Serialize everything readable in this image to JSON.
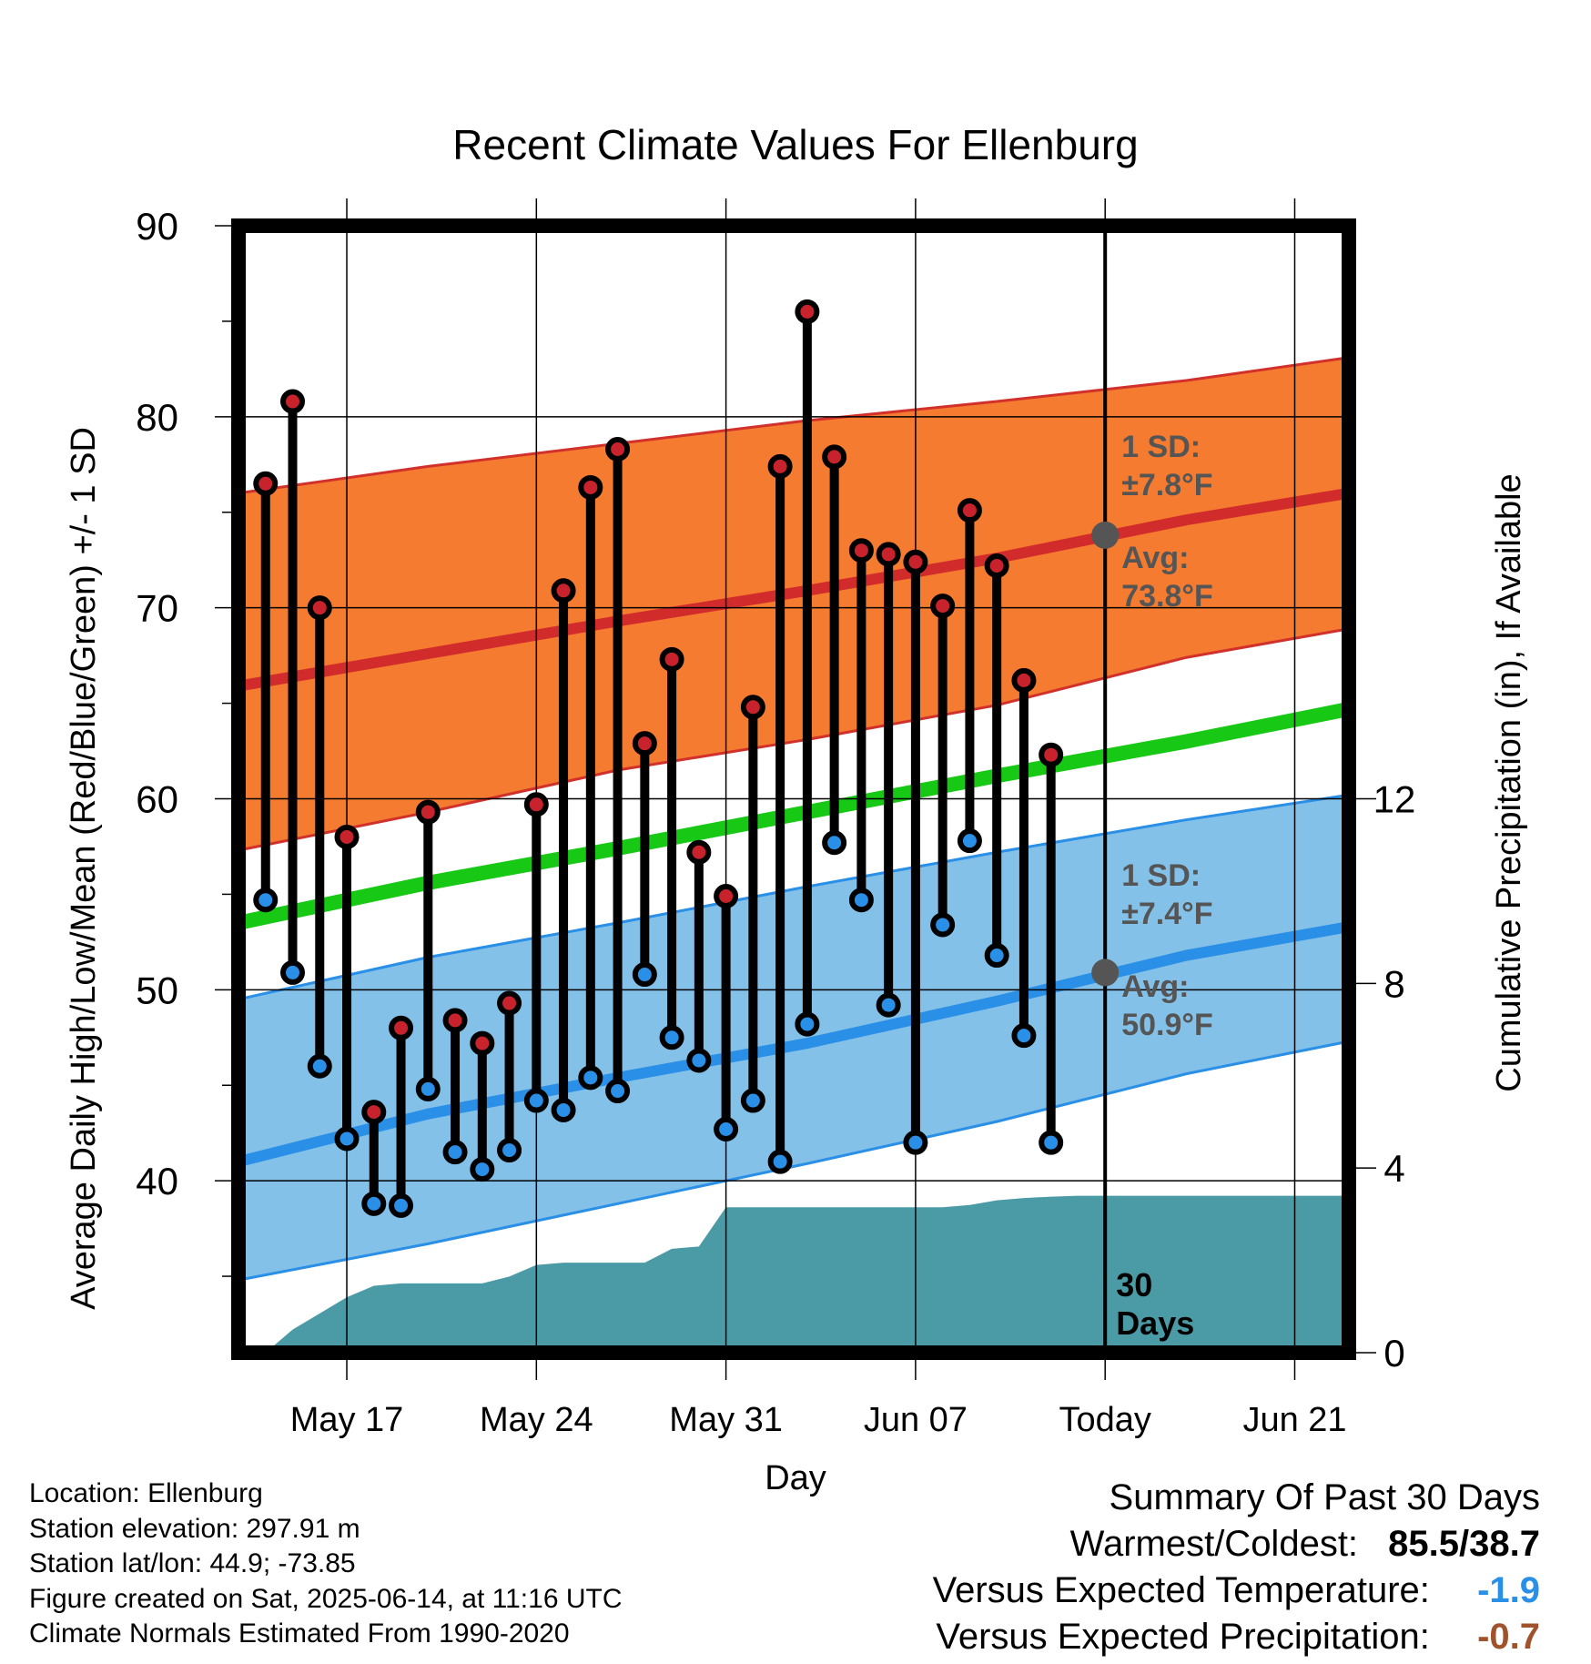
{
  "chart_data": {
    "type": "line",
    "title": "Recent Climate Values For Ellenburg",
    "xlabel": "Day",
    "ylabel": "Average Daily High/Low/Mean (Red/Blue/Green) +/- 1 SD",
    "y2label": "Cumulative Precipitation (in), If Available",
    "ylim": [
      31,
      90
    ],
    "yticks": [
      "40",
      "50",
      "60",
      "70",
      "80",
      "90"
    ],
    "y2lim": [
      0,
      12
    ],
    "y2ticks": [
      "0",
      "4",
      "8",
      "12"
    ],
    "xlim": [
      "2025-05-13",
      "2025-06-23"
    ],
    "xticks": [
      {
        "date": "2025-05-17",
        "label": "May 17"
      },
      {
        "date": "2025-05-24",
        "label": "May 24"
      },
      {
        "date": "2025-05-31",
        "label": "May 31"
      },
      {
        "date": "2025-06-07",
        "label": "Jun 07"
      },
      {
        "date": "2025-06-14",
        "label": "Today"
      },
      {
        "date": "2025-06-21",
        "label": "Jun 21"
      }
    ],
    "today": "2025-06-14",
    "today_label": [
      "30",
      "Days"
    ],
    "grid": true,
    "normals": {
      "dates": [
        "2025-05-13",
        "2025-05-20",
        "2025-05-27",
        "2025-06-03",
        "2025-06-10",
        "2025-06-17",
        "2025-06-23"
      ],
      "high_mean": [
        65.9,
        67.6,
        69.3,
        70.9,
        72.6,
        74.6,
        76.0
      ],
      "high_upper": [
        76.0,
        77.4,
        78.6,
        79.8,
        80.8,
        81.9,
        83.1
      ],
      "high_lower": [
        57.3,
        59.3,
        61.5,
        63.1,
        64.9,
        67.4,
        68.9
      ],
      "low_mean": [
        41.0,
        43.5,
        45.4,
        47.2,
        49.4,
        51.8,
        53.3
      ],
      "low_upper": [
        49.5,
        51.7,
        53.5,
        55.4,
        57.2,
        58.9,
        60.2
      ],
      "low_lower": [
        34.8,
        36.7,
        38.8,
        40.9,
        43.1,
        45.6,
        47.3
      ],
      "mean": [
        53.5,
        55.6,
        57.4,
        59.3,
        61.2,
        63.0,
        64.7
      ]
    },
    "high_label": {
      "sd": "1 SD:",
      "sd_value": "±7.8°F",
      "avg": "Avg:",
      "avg_value": "73.8°F",
      "marker_value": 73.8
    },
    "low_label": {
      "sd": "1 SD:",
      "sd_value": "±7.4°F",
      "avg": "Avg:",
      "avg_value": "50.9°F",
      "marker_value": 50.9
    },
    "series": [
      {
        "name": "High",
        "color": "#c8232c",
        "dates": [
          "2025-05-14",
          "2025-05-15",
          "2025-05-16",
          "2025-05-17",
          "2025-05-18",
          "2025-05-19",
          "2025-05-20",
          "2025-05-21",
          "2025-05-22",
          "2025-05-23",
          "2025-05-24",
          "2025-05-25",
          "2025-05-26",
          "2025-05-27",
          "2025-05-28",
          "2025-05-29",
          "2025-05-30",
          "2025-05-31",
          "2025-06-01",
          "2025-06-02",
          "2025-06-03",
          "2025-06-04",
          "2025-06-05",
          "2025-06-06",
          "2025-06-07",
          "2025-06-08",
          "2025-06-09",
          "2025-06-10",
          "2025-06-11",
          "2025-06-12",
          "2025-06-13"
        ],
        "values": [
          76.5,
          80.8,
          70.0,
          58.0,
          43.6,
          48.0,
          59.3,
          48.4,
          47.2,
          49.3,
          59.7,
          70.9,
          76.3,
          78.3,
          62.9,
          67.3,
          57.2,
          54.9,
          64.8,
          77.4,
          85.5,
          77.9,
          73.0,
          72.8,
          72.4,
          70.1,
          75.1,
          72.2,
          66.2,
          62.3,
          null
        ]
      },
      {
        "name": "Low",
        "color": "#2a8fe6",
        "dates": [
          "2025-05-14",
          "2025-05-15",
          "2025-05-16",
          "2025-05-17",
          "2025-05-18",
          "2025-05-19",
          "2025-05-20",
          "2025-05-21",
          "2025-05-22",
          "2025-05-23",
          "2025-05-24",
          "2025-05-25",
          "2025-05-26",
          "2025-05-27",
          "2025-05-28",
          "2025-05-29",
          "2025-05-30",
          "2025-05-31",
          "2025-06-01",
          "2025-06-02",
          "2025-06-03",
          "2025-06-04",
          "2025-06-05",
          "2025-06-06",
          "2025-06-07",
          "2025-06-08",
          "2025-06-09",
          "2025-06-10",
          "2025-06-11",
          "2025-06-12",
          "2025-06-13"
        ],
        "values": [
          54.7,
          50.9,
          46.0,
          42.2,
          38.8,
          38.7,
          44.8,
          41.5,
          40.6,
          41.6,
          44.2,
          43.7,
          45.4,
          44.7,
          50.8,
          47.5,
          46.3,
          42.7,
          44.2,
          41.0,
          48.2,
          57.7,
          54.7,
          49.2,
          42.0,
          53.4,
          57.8,
          51.8,
          47.6,
          42.0,
          null
        ]
      }
    ],
    "precip": {
      "name": "Cumulative Precipitation",
      "color": "#4a9ba5",
      "dates": [
        "2025-05-13",
        "2025-05-14",
        "2025-05-15",
        "2025-05-16",
        "2025-05-17",
        "2025-05-18",
        "2025-05-19",
        "2025-05-20",
        "2025-05-21",
        "2025-05-22",
        "2025-05-23",
        "2025-05-24",
        "2025-05-25",
        "2025-05-26",
        "2025-05-27",
        "2025-05-28",
        "2025-05-29",
        "2025-05-30",
        "2025-05-31",
        "2025-06-01",
        "2025-06-02",
        "2025-06-03",
        "2025-06-04",
        "2025-06-05",
        "2025-06-06",
        "2025-06-07",
        "2025-06-08",
        "2025-06-09",
        "2025-06-10",
        "2025-06-11",
        "2025-06-12",
        "2025-06-13",
        "2025-06-14",
        "2025-06-23"
      ],
      "values": [
        0.0,
        0.0,
        0.5,
        0.85,
        1.2,
        1.45,
        1.5,
        1.5,
        1.5,
        1.5,
        1.65,
        1.9,
        1.95,
        1.95,
        1.95,
        1.95,
        2.25,
        2.3,
        3.15,
        3.15,
        3.15,
        3.15,
        3.15,
        3.15,
        3.15,
        3.15,
        3.15,
        3.2,
        3.3,
        3.35,
        3.38,
        3.4,
        3.4,
        3.4
      ]
    }
  },
  "footer": {
    "location": "Location: Ellenburg",
    "elevation": "Station elevation: 297.91 m",
    "latlon": "Station lat/lon: 44.9; -73.85",
    "created": "Figure created on Sat, 2025-06-14, at 11:16 UTC",
    "normals": "Climate Normals Estimated From 1990-2020"
  },
  "summary": {
    "title": "Summary Of Past 30 Days",
    "warmest_label": "Warmest/Coldest:",
    "warmest_value": "85.5/38.7",
    "temp_label": "Versus Expected Temperature:",
    "temp_value": "-1.9",
    "temp_color": "#2a8fe6",
    "precip_label": "Versus Expected Precipitation:",
    "precip_value": "-0.7",
    "precip_color": "#a0522d"
  },
  "colors": {
    "high_band": "#f47b2f",
    "high_line": "#d22b2b",
    "low_band": "#84c1e8",
    "low_line": "#2a8fe6",
    "mean_line": "#17c914",
    "precip_fill": "#4a9ba5",
    "sd_text": "#555555"
  }
}
